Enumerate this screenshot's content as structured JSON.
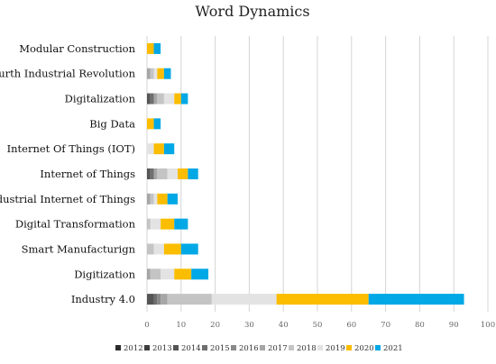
{
  "chart_data": {
    "type": "bar",
    "orientation": "horizontal",
    "stacked": true,
    "title": "Word Dynamics",
    "xlabel": "",
    "ylabel": "",
    "xlim": [
      0,
      100
    ],
    "xticks": [
      0,
      10,
      20,
      30,
      40,
      50,
      60,
      70,
      80,
      90,
      100
    ],
    "grid": true,
    "legend_position": "bottom",
    "categories": [
      "Modular Construction",
      "Fourth Industrial Revolution",
      "Digitalization",
      "Big Data",
      "Internet Of Things (IOT)",
      "Internet of Things",
      "Industrial Internet of Things",
      "Digital Transformation",
      "Smart Manufacturign",
      "Digitization",
      "Industry 4.0"
    ],
    "series": [
      {
        "name": "2012",
        "color": "#2b2b2b",
        "values": [
          0,
          0,
          0,
          0,
          0,
          0,
          0,
          0,
          0,
          0,
          0
        ]
      },
      {
        "name": "2013",
        "color": "#3d3d3d",
        "values": [
          0,
          0,
          0,
          0,
          0,
          0,
          0,
          0,
          0,
          0,
          0
        ]
      },
      {
        "name": "2014",
        "color": "#555555",
        "values": [
          0,
          0,
          1,
          0,
          0,
          1,
          0,
          0,
          0,
          0,
          2
        ]
      },
      {
        "name": "2015",
        "color": "#6f6f6f",
        "values": [
          0,
          0,
          1,
          0,
          0,
          1,
          0,
          0,
          0,
          0,
          1
        ]
      },
      {
        "name": "2016",
        "color": "#8a8a8a",
        "values": [
          0,
          0,
          0,
          0,
          0,
          0,
          0,
          0,
          0,
          0,
          1
        ]
      },
      {
        "name": "2017",
        "color": "#a6a6a6",
        "values": [
          0,
          1,
          1,
          0,
          0,
          1,
          1,
          0,
          0,
          1,
          2
        ]
      },
      {
        "name": "2018",
        "color": "#c4c4c4",
        "values": [
          0,
          1,
          2,
          0,
          0,
          3,
          1,
          1,
          2,
          3,
          13
        ]
      },
      {
        "name": "2019",
        "color": "#e3e3e3",
        "values": [
          0,
          1,
          3,
          0,
          2,
          3,
          1,
          3,
          3,
          4,
          19
        ]
      },
      {
        "name": "2020",
        "color": "#fbbd00",
        "values": [
          2,
          2,
          2,
          2,
          3,
          3,
          3,
          4,
          5,
          5,
          27
        ]
      },
      {
        "name": "2021",
        "color": "#00a8e6",
        "values": [
          2,
          2,
          2,
          2,
          3,
          3,
          3,
          4,
          5,
          5,
          28
        ]
      }
    ]
  }
}
